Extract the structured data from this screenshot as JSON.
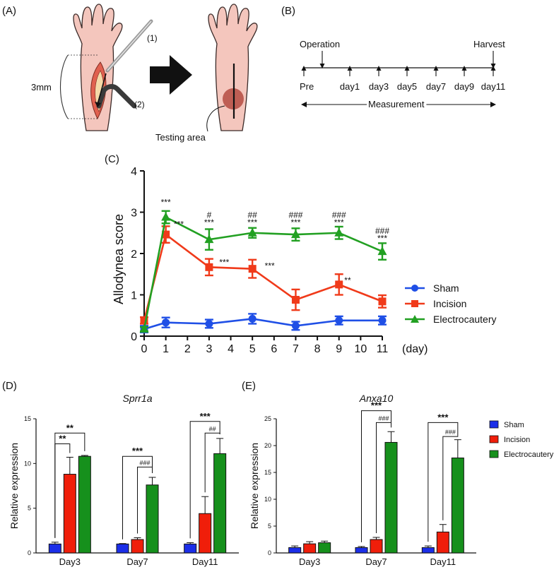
{
  "panels": {
    "A": {
      "label": "(A)",
      "measure_label": "3mm",
      "tool1_label": "(1)",
      "tool2_label": "(2)",
      "testing_area_label": "Testing area",
      "colors": {
        "skin": "#f4c6bd",
        "incision": "#e0604f",
        "testing_spot": "#b0443a"
      }
    },
    "B": {
      "label": "(B)",
      "operation_label": "Operation",
      "harvest_label": "Harvest",
      "timepoints": [
        "Pre",
        "day1",
        "day3",
        "day5",
        "day7",
        "day9",
        "day11"
      ],
      "measurement_label": "Measurement"
    },
    "C": {
      "label": "(C)"
    },
    "D": {
      "label": "(D)"
    },
    "E": {
      "label": "(E)"
    }
  },
  "chart_data": [
    {
      "id": "C",
      "type": "line",
      "title": "",
      "xlabel": "(day)",
      "ylabel": "Allodynea score",
      "x": [
        0,
        1,
        3,
        5,
        7,
        9,
        11
      ],
      "xticks": [
        0,
        1,
        2,
        3,
        4,
        5,
        6,
        7,
        8,
        9,
        10,
        11
      ],
      "xlim": [
        0,
        11
      ],
      "yticks": [
        0,
        1,
        2,
        3,
        4
      ],
      "ylim": [
        0,
        4
      ],
      "series": [
        {
          "name": "Sham",
          "color": "#1f4fe6",
          "marker": "circle",
          "values": [
            0.17,
            0.33,
            0.3,
            0.42,
            0.25,
            0.38,
            0.38
          ],
          "errors": [
            0.08,
            0.12,
            0.1,
            0.12,
            0.1,
            0.1,
            0.1
          ]
        },
        {
          "name": "Incision",
          "color": "#f03a1a",
          "marker": "square",
          "values": [
            0.38,
            2.46,
            1.67,
            1.63,
            0.88,
            1.25,
            0.84
          ],
          "errors": [
            0.08,
            0.2,
            0.2,
            0.22,
            0.25,
            0.25,
            0.15
          ]
        },
        {
          "name": "Electrocautery",
          "color": "#22a022",
          "marker": "triangle",
          "values": [
            0.17,
            2.88,
            2.34,
            2.5,
            2.46,
            2.5,
            2.05
          ],
          "errors": [
            0.05,
            0.15,
            0.25,
            0.12,
            0.15,
            0.15,
            0.2
          ]
        }
      ],
      "annotations": [
        {
          "x": 1,
          "y": 3.17,
          "text": "***"
        },
        {
          "x": 1.6,
          "y": 2.64,
          "text": "***"
        },
        {
          "x": 3,
          "y": 2.68,
          "text": "***"
        },
        {
          "x": 3,
          "y": 2.86,
          "text": "#"
        },
        {
          "x": 5,
          "y": 2.68,
          "text": "***"
        },
        {
          "x": 5,
          "y": 2.86,
          "text": "##"
        },
        {
          "x": 7,
          "y": 2.68,
          "text": "***"
        },
        {
          "x": 7,
          "y": 2.86,
          "text": "###"
        },
        {
          "x": 9,
          "y": 2.68,
          "text": "***"
        },
        {
          "x": 9,
          "y": 2.86,
          "text": "###"
        },
        {
          "x": 11,
          "y": 2.3,
          "text": "***"
        },
        {
          "x": 11,
          "y": 2.48,
          "text": "###"
        },
        {
          "x": 3.7,
          "y": 1.72,
          "text": "***"
        },
        {
          "x": 5.8,
          "y": 1.63,
          "text": "***"
        },
        {
          "x": 9.4,
          "y": 1.28,
          "text": "**"
        }
      ],
      "legend": {
        "position": "right"
      }
    },
    {
      "id": "D",
      "type": "bar",
      "title": "Sprr1a",
      "xlabel": "",
      "ylabel": "Relative expression",
      "categories": [
        "Day3",
        "Day7",
        "Day11"
      ],
      "ylim": [
        0,
        15
      ],
      "yticks": [
        0,
        5,
        10,
        15
      ],
      "series": [
        {
          "name": "Sham",
          "color": "#1b2ee8",
          "values": [
            1.0,
            1.0,
            1.0
          ],
          "errors": [
            0.2,
            0.05,
            0.15
          ]
        },
        {
          "name": "Incision",
          "color": "#f01e0a",
          "values": [
            8.8,
            1.5,
            4.4
          ],
          "errors": [
            1.9,
            0.2,
            1.9
          ]
        },
        {
          "name": "Electrocautery",
          "color": "#16901c",
          "values": [
            10.8,
            7.6,
            11.1
          ],
          "errors": [
            0.1,
            0.85,
            1.7
          ]
        }
      ],
      "significance": [
        {
          "group": 0,
          "from": 0,
          "to": 1,
          "text": "**",
          "y": 12.2
        },
        {
          "group": 0,
          "from": 0,
          "to": 2,
          "text": "**",
          "y": 13.4
        },
        {
          "group": 1,
          "from": 0,
          "to": 2,
          "text": "***",
          "y": 10.8
        },
        {
          "group": 1,
          "from": 1,
          "to": 2,
          "text": "###",
          "y": 9.6
        },
        {
          "group": 2,
          "from": 0,
          "to": 2,
          "text": "***",
          "y": 14.7
        },
        {
          "group": 2,
          "from": 1,
          "to": 2,
          "text": "##",
          "y": 13.4
        }
      ]
    },
    {
      "id": "E",
      "type": "bar",
      "title": "Anxa10",
      "xlabel": "",
      "ylabel": "Relative expression",
      "categories": [
        "Day3",
        "Day7",
        "Day11"
      ],
      "ylim": [
        0,
        25
      ],
      "yticks": [
        0,
        5,
        10,
        15,
        20,
        25
      ],
      "series": [
        {
          "name": "Sham",
          "color": "#1b2ee8",
          "values": [
            1.0,
            1.0,
            1.0
          ],
          "errors": [
            0.3,
            0.2,
            0.3
          ]
        },
        {
          "name": "Incision",
          "color": "#f01e0a",
          "values": [
            1.7,
            2.5,
            3.9
          ],
          "errors": [
            0.4,
            0.4,
            1.4
          ]
        },
        {
          "name": "Electrocautery",
          "color": "#16901c",
          "values": [
            1.9,
            20.6,
            17.7
          ],
          "errors": [
            0.3,
            2.0,
            3.4
          ]
        }
      ],
      "significance": [
        {
          "group": 1,
          "from": 0,
          "to": 2,
          "text": "***",
          "y": 26.5
        },
        {
          "group": 1,
          "from": 1,
          "to": 2,
          "text": "###",
          "y": 24.3
        },
        {
          "group": 2,
          "from": 0,
          "to": 2,
          "text": "***",
          "y": 24.3
        },
        {
          "group": 2,
          "from": 1,
          "to": 2,
          "text": "###",
          "y": 21.7
        }
      ],
      "legend": {
        "position": "right"
      }
    }
  ]
}
